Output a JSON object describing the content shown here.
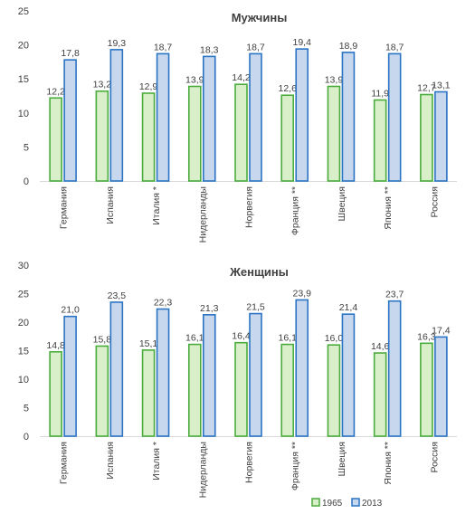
{
  "chart_data": [
    {
      "type": "bar",
      "title": "Мужчины",
      "categories": [
        "Германия",
        "Испания",
        "Италия *",
        "Нидерланды",
        "Норвегия",
        "Франция **",
        "Швеция",
        "Япония **",
        "Россия"
      ],
      "series": [
        {
          "name": "1965",
          "values": [
            12.2,
            13.2,
            12.9,
            13.9,
            14.2,
            12.6,
            13.9,
            11.9,
            12.7
          ],
          "labels": [
            "12,2",
            "13,2",
            "12,9",
            "13,9",
            "14,2",
            "12,6",
            "13,9",
            "11,9",
            "12,7"
          ]
        },
        {
          "name": "2013",
          "values": [
            17.8,
            19.3,
            18.7,
            18.3,
            18.7,
            19.4,
            18.9,
            18.7,
            13.1
          ],
          "labels": [
            "17,8",
            "19,3",
            "18,7",
            "18,3",
            "18,7",
            "19,4",
            "18,9",
            "18,7",
            "13,1"
          ]
        }
      ],
      "ylim": [
        0,
        25
      ],
      "yticks": [
        0,
        5,
        10,
        15,
        20,
        25
      ],
      "grid": false
    },
    {
      "type": "bar",
      "title": "Женщины",
      "categories": [
        "Германия",
        "Испания",
        "Италия *",
        "Нидерланды",
        "Норвегия",
        "Франция **",
        "Швеция",
        "Япония **",
        "Россия"
      ],
      "series": [
        {
          "name": "1965",
          "values": [
            14.8,
            15.8,
            15.1,
            16.1,
            16.4,
            16.1,
            16.0,
            14.6,
            16.3
          ],
          "labels": [
            "14,8",
            "15,8",
            "15,1",
            "16,1",
            "16,4",
            "16,1",
            "16,0",
            "14,6",
            "16,3"
          ]
        },
        {
          "name": "2013",
          "values": [
            21.0,
            23.5,
            22.3,
            21.3,
            21.5,
            23.9,
            21.4,
            23.7,
            17.4
          ],
          "labels": [
            "21,0",
            "23,5",
            "22,3",
            "21,3",
            "21,5",
            "23,9",
            "21,4",
            "23,7",
            "17,4"
          ]
        }
      ],
      "ylim": [
        0,
        30
      ],
      "yticks": [
        0,
        5,
        10,
        15,
        20,
        25,
        30
      ],
      "grid": false
    }
  ],
  "legend": {
    "placement": "bottom-right",
    "items": [
      {
        "label": "1965",
        "fill": "#d9efc9",
        "stroke": "#4aac3c"
      },
      {
        "label": "2013",
        "fill": "#c6d7ee",
        "stroke": "#2b74c4"
      }
    ]
  },
  "colors": {
    "series_1965_fill": "#d9efc9",
    "series_1965_stroke": "#4aac3c",
    "series_2013_fill": "#c6d7ee",
    "series_2013_stroke": "#2b74c4",
    "text": "#404040",
    "axis": "#d9d9d9"
  }
}
